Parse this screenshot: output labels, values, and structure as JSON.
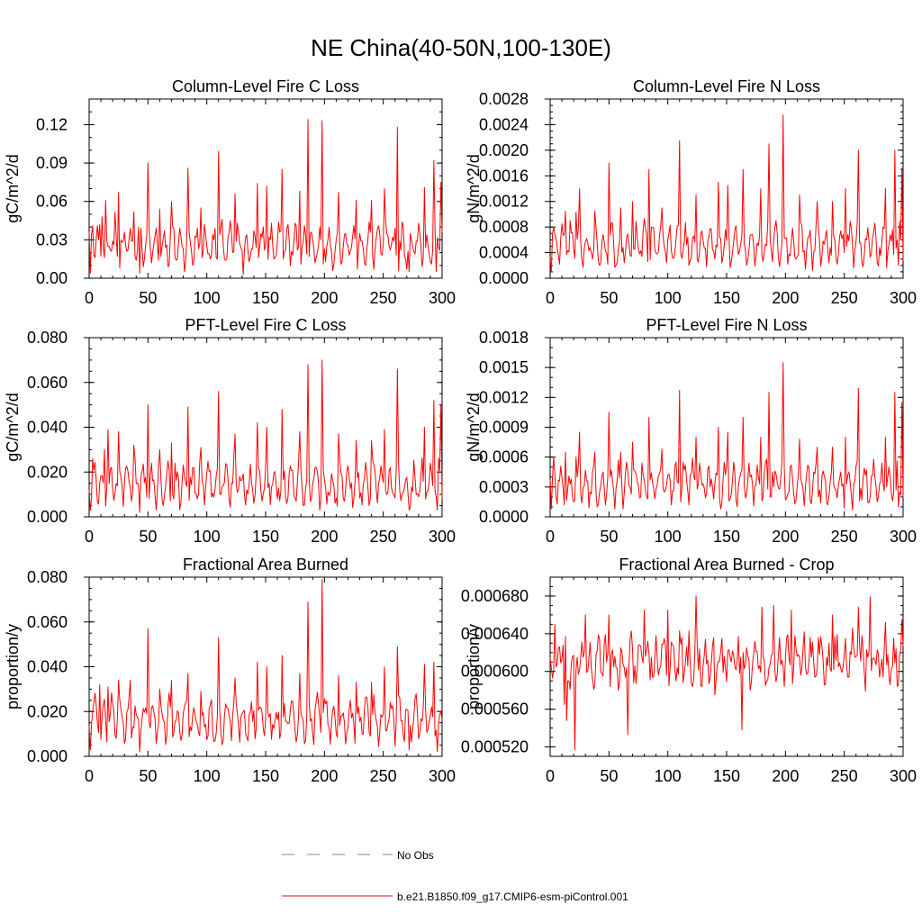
{
  "title": "NE China(40-50N,100-130E)",
  "colors": {
    "model": "#ff0000",
    "obs": "#8080c0",
    "axis": "#000000"
  },
  "legend": {
    "obs_label": "No Obs",
    "model_label": "b.e21.B1850.f09_g17.CMIP6-esm-piControl.001"
  },
  "chart_data": [
    {
      "type": "line",
      "title": "Column-Level Fire C Loss",
      "ylabel": "gC/m^2/d",
      "xlim": [
        0,
        300
      ],
      "ylim": [
        0,
        0.14
      ],
      "xticks": [
        0,
        50,
        100,
        150,
        200,
        250,
        300
      ],
      "xtick_labels": [
        "0",
        "50",
        "100",
        "150",
        "200",
        "250",
        "300"
      ],
      "yticks": [
        0,
        0.03,
        0.06,
        0.09,
        0.12
      ],
      "ytick_labels": [
        "0.00",
        "0.03",
        "0.06",
        "0.09",
        "0.12"
      ],
      "y_minor_step": 0.01,
      "series": [
        {
          "name": "b.e21.B1850.f09_g17.CMIP6-esm-piControl.001",
          "base": 0.025,
          "amp": 0.012,
          "noise": 0.018,
          "floor": 0.003,
          "seed": 7,
          "dec": 3,
          "peaks": [
            [
              1,
              0.004
            ],
            [
              3,
              0.041
            ],
            [
              11,
              0.048
            ],
            [
              14,
              0.061
            ],
            [
              22,
              0.052
            ],
            [
              25,
              0.067
            ],
            [
              38,
              0.052
            ],
            [
              43,
              0.004
            ],
            [
              50,
              0.09
            ],
            [
              60,
              0.054
            ],
            [
              70,
              0.06
            ],
            [
              84,
              0.086
            ],
            [
              95,
              0.055
            ],
            [
              110,
              0.099
            ],
            [
              124,
              0.066
            ],
            [
              131,
              0.003
            ],
            [
              143,
              0.074
            ],
            [
              151,
              0.072
            ],
            [
              164,
              0.085
            ],
            [
              179,
              0.068
            ],
            [
              186,
              0.124
            ],
            [
              190,
              0.03
            ],
            [
              198,
              0.123
            ],
            [
              212,
              0.067
            ],
            [
              227,
              0.061
            ],
            [
              240,
              0.061
            ],
            [
              251,
              0.07
            ],
            [
              262,
              0.118
            ],
            [
              272,
              0.005
            ],
            [
              285,
              0.071
            ],
            [
              293,
              0.092
            ],
            [
              295,
              0.005
            ],
            [
              299,
              0.075
            ]
          ]
        }
      ]
    },
    {
      "type": "line",
      "title": "Column-Level Fire N Loss",
      "ylabel": "gN/m^2/d",
      "xlim": [
        0,
        300
      ],
      "ylim": [
        0,
        0.0028
      ],
      "xticks": [
        0,
        50,
        100,
        150,
        200,
        250,
        300
      ],
      "xtick_labels": [
        "0",
        "50",
        "100",
        "150",
        "200",
        "250",
        "300"
      ],
      "yticks": [
        0,
        0.0004,
        0.0008,
        0.0012,
        0.0016,
        0.002,
        0.0024,
        0.0028
      ],
      "ytick_labels": [
        "0.0000",
        "0.0004",
        "0.0008",
        "0.0012",
        "0.0016",
        "0.0020",
        "0.0024",
        "0.0028"
      ],
      "y_minor_step": 0.0001,
      "series": [
        {
          "name": "b.e21.B1850.f09_g17.CMIP6-esm-piControl.001",
          "base": 0.0005,
          "amp": 0.00024,
          "noise": 0.00036,
          "floor": 0.0001,
          "seed": 11,
          "dec": 5,
          "peaks": [
            [
              1,
              0.0001
            ],
            [
              3,
              0.0008
            ],
            [
              13,
              0.00105
            ],
            [
              22,
              0.00103
            ],
            [
              25,
              0.0014
            ],
            [
              38,
              0.00105
            ],
            [
              50,
              0.0018
            ],
            [
              60,
              0.0011
            ],
            [
              70,
              0.0012
            ],
            [
              84,
              0.0017
            ],
            [
              95,
              0.0011
            ],
            [
              110,
              0.00215
            ],
            [
              124,
              0.0013
            ],
            [
              143,
              0.0015
            ],
            [
              151,
              0.00145
            ],
            [
              164,
              0.0017
            ],
            [
              179,
              0.0014
            ],
            [
              186,
              0.0021
            ],
            [
              190,
              0.0006
            ],
            [
              198,
              0.00255
            ],
            [
              212,
              0.0013
            ],
            [
              227,
              0.0012
            ],
            [
              240,
              0.0012
            ],
            [
              251,
              0.0014
            ],
            [
              262,
              0.002
            ],
            [
              285,
              0.0014
            ],
            [
              293,
              0.002
            ],
            [
              296,
              0.0002
            ],
            [
              299,
              0.00172
            ]
          ]
        }
      ]
    },
    {
      "type": "line",
      "title": "PFT-Level Fire C Loss",
      "ylabel": "gC/m^2/d",
      "xlim": [
        0,
        300
      ],
      "ylim": [
        0,
        0.08
      ],
      "xticks": [
        0,
        50,
        100,
        150,
        200,
        250,
        300
      ],
      "xtick_labels": [
        "0",
        "50",
        "100",
        "150",
        "200",
        "250",
        "300"
      ],
      "yticks": [
        0,
        0.02,
        0.04,
        0.06,
        0.08
      ],
      "ytick_labels": [
        "0.000",
        "0.020",
        "0.040",
        "0.060",
        "0.080"
      ],
      "y_minor_step": 0.005,
      "series": [
        {
          "name": "b.e21.B1850.f09_g17.CMIP6-esm-piControl.001",
          "base": 0.014,
          "amp": 0.007,
          "noise": 0.011,
          "floor": 0.002,
          "seed": 23,
          "dec": 4,
          "peaks": [
            [
              1,
              0.003
            ],
            [
              3,
              0.026
            ],
            [
              13,
              0.03
            ],
            [
              16,
              0.039
            ],
            [
              25,
              0.038
            ],
            [
              38,
              0.032
            ],
            [
              43,
              0.002
            ],
            [
              50,
              0.05
            ],
            [
              60,
              0.03
            ],
            [
              70,
              0.033
            ],
            [
              84,
              0.049
            ],
            [
              95,
              0.031
            ],
            [
              110,
              0.056
            ],
            [
              124,
              0.037
            ],
            [
              143,
              0.042
            ],
            [
              151,
              0.04
            ],
            [
              164,
              0.048
            ],
            [
              179,
              0.038
            ],
            [
              186,
              0.068
            ],
            [
              190,
              0.015
            ],
            [
              198,
              0.07
            ],
            [
              212,
              0.037
            ],
            [
              227,
              0.034
            ],
            [
              240,
              0.034
            ],
            [
              251,
              0.039
            ],
            [
              262,
              0.066
            ],
            [
              272,
              0.003
            ],
            [
              285,
              0.04
            ],
            [
              293,
              0.052
            ],
            [
              296,
              0.003
            ],
            [
              299,
              0.05
            ]
          ]
        }
      ]
    },
    {
      "type": "line",
      "title": "PFT-Level Fire N Loss",
      "ylabel": "gN/m^2/d",
      "xlim": [
        0,
        300
      ],
      "ylim": [
        0,
        0.0018
      ],
      "xticks": [
        0,
        50,
        100,
        150,
        200,
        250,
        300
      ],
      "xtick_labels": [
        "0",
        "50",
        "100",
        "150",
        "200",
        "250",
        "300"
      ],
      "yticks": [
        0,
        0.0003,
        0.0006,
        0.0009,
        0.0012,
        0.0015,
        0.0018
      ],
      "ytick_labels": [
        "0.0000",
        "0.0003",
        "0.0006",
        "0.0009",
        "0.0012",
        "0.0015",
        "0.0018"
      ],
      "y_minor_step": 0.0001,
      "series": [
        {
          "name": "b.e21.B1850.f09_g17.CMIP6-esm-piControl.001",
          "base": 0.00032,
          "amp": 0.00015,
          "noise": 0.00024,
          "floor": 5e-05,
          "seed": 31,
          "dec": 5,
          "peaks": [
            [
              1,
              8e-05
            ],
            [
              3,
              0.0006
            ],
            [
              13,
              0.00065
            ],
            [
              22,
              0.0006
            ],
            [
              25,
              0.00085
            ],
            [
              38,
              0.00065
            ],
            [
              50,
              0.00105
            ],
            [
              60,
              0.00065
            ],
            [
              70,
              0.00075
            ],
            [
              84,
              0.001
            ],
            [
              95,
              0.00068
            ],
            [
              110,
              0.00127
            ],
            [
              124,
              0.0008
            ],
            [
              143,
              0.0009
            ],
            [
              151,
              0.00085
            ],
            [
              164,
              0.001
            ],
            [
              179,
              0.0008
            ],
            [
              186,
              0.00125
            ],
            [
              190,
              0.0003
            ],
            [
              198,
              0.00155
            ],
            [
              212,
              0.00078
            ],
            [
              227,
              0.0007
            ],
            [
              240,
              0.0007
            ],
            [
              251,
              0.0008
            ],
            [
              262,
              0.00129
            ],
            [
              285,
              0.0008
            ],
            [
              293,
              0.00125
            ],
            [
              296,
              0.0001
            ],
            [
              299,
              0.00115
            ]
          ]
        }
      ]
    },
    {
      "type": "line",
      "title": "Fractional Area Burned",
      "ylabel": "proportion/y",
      "xlim": [
        0,
        300
      ],
      "ylim": [
        0,
        0.08
      ],
      "xticks": [
        0,
        50,
        100,
        150,
        200,
        250,
        300
      ],
      "xtick_labels": [
        "0",
        "50",
        "100",
        "150",
        "200",
        "250",
        "300"
      ],
      "yticks": [
        0,
        0.02,
        0.04,
        0.06,
        0.08
      ],
      "ytick_labels": [
        "0.000",
        "0.020",
        "0.040",
        "0.060",
        "0.080"
      ],
      "y_minor_step": 0.005,
      "series": [
        {
          "name": "b.e21.B1850.f09_g17.CMIP6-esm-piControl.001",
          "base": 0.016,
          "amp": 0.007,
          "noise": 0.011,
          "floor": 0.002,
          "seed": 47,
          "dec": 4,
          "peaks": [
            [
              1,
              0.003
            ],
            [
              3,
              0.02
            ],
            [
              9,
              0.032
            ],
            [
              16,
              0.031
            ],
            [
              25,
              0.034
            ],
            [
              35,
              0.034
            ],
            [
              43,
              0.002
            ],
            [
              50,
              0.057
            ],
            [
              60,
              0.03
            ],
            [
              70,
              0.034
            ],
            [
              84,
              0.037
            ],
            [
              95,
              0.029
            ],
            [
              110,
              0.053
            ],
            [
              124,
              0.035
            ],
            [
              143,
              0.042
            ],
            [
              151,
              0.04
            ],
            [
              164,
              0.045
            ],
            [
              179,
              0.037
            ],
            [
              186,
              0.069
            ],
            [
              190,
              0.01
            ],
            [
              198,
              0.079
            ],
            [
              212,
              0.036
            ],
            [
              227,
              0.033
            ],
            [
              240,
              0.033
            ],
            [
              251,
              0.04
            ],
            [
              262,
              0.049
            ],
            [
              272,
              0.003
            ],
            [
              285,
              0.041
            ],
            [
              293,
              0.042
            ],
            [
              296,
              0.002
            ],
            [
              299,
              0.02
            ]
          ]
        }
      ]
    },
    {
      "type": "line",
      "title": "Fractional Area Burned - Crop",
      "ylabel": "proportion/y",
      "xlim": [
        0,
        300
      ],
      "ylim": [
        0.00051,
        0.0007
      ],
      "xticks": [
        0,
        50,
        100,
        150,
        200,
        250,
        300
      ],
      "xtick_labels": [
        "0",
        "50",
        "100",
        "150",
        "200",
        "250",
        "300"
      ],
      "yticks": [
        0.00052,
        0.00056,
        0.0006,
        0.00064,
        0.00068
      ],
      "ytick_labels": [
        "0.000520",
        "0.000560",
        "0.000600",
        "0.000640",
        "0.000680"
      ],
      "y_minor_step": 1e-05,
      "series": [
        {
          "name": "b.e21.B1850.f09_g17.CMIP6-esm-piControl.001",
          "base": 0.00061,
          "amp": 1.5e-05,
          "noise": 4e-05,
          "floor": 0.000555,
          "seed": 59,
          "dec": 6,
          "peaks": [
            [
              4,
              0.00065
            ],
            [
              12,
              0.000565
            ],
            [
              14,
              0.000548
            ],
            [
              21,
              0.000517
            ],
            [
              30,
              0.00066
            ],
            [
              50,
              0.00066
            ],
            [
              66,
              0.000533
            ],
            [
              80,
              0.000665
            ],
            [
              100,
              0.000665
            ],
            [
              124,
              0.00068
            ],
            [
              140,
              0.000575
            ],
            [
              163,
              0.000538
            ],
            [
              180,
              0.000668
            ],
            [
              190,
              0.00067
            ],
            [
              205,
              0.000665
            ],
            [
              240,
              0.00066
            ],
            [
              262,
              0.000668
            ],
            [
              272,
              0.000679
            ],
            [
              285,
              0.000652
            ],
            [
              299,
              0.000655
            ]
          ]
        }
      ]
    }
  ]
}
